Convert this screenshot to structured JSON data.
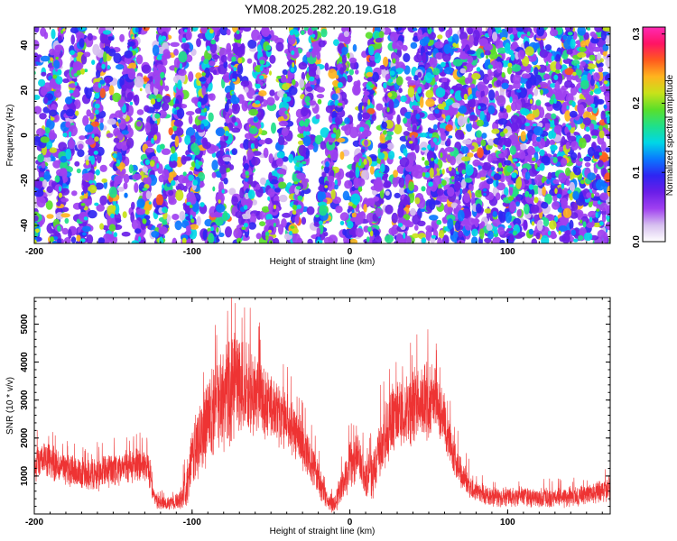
{
  "title": "YM08.2025.282.20.19.G18",
  "colors": {
    "snr_line": "#ee3333",
    "colormap": [
      "#ffffff",
      "#d7c0ef",
      "#a040f0",
      "#6a1ee8",
      "#2f25f2",
      "#0a78ff",
      "#00d7e6",
      "#1fe08a",
      "#5adf2a",
      "#c8e21a",
      "#ffb41e",
      "#ff5a1e",
      "#ff1464",
      "#ff2ab4"
    ]
  },
  "chart_data": [
    {
      "type": "heatmap",
      "title": "YM08.2025.282.20.19.G18",
      "xlabel": "Height of straight line (km)",
      "ylabel": "Frequency (Hz)",
      "xlim": [
        -200,
        165
      ],
      "ylim": [
        -48,
        48
      ],
      "xticks": [
        -200,
        -100,
        0,
        100
      ],
      "yticks": [
        -40,
        -20,
        0,
        20,
        40
      ],
      "colorbar": {
        "label": "Normalized spectral amplitude",
        "range": [
          0.0,
          0.31
        ],
        "ticks": [
          0.0,
          0.1,
          0.2,
          0.3
        ],
        "tick_labels": [
          "0.0",
          "0.1",
          "0.2",
          "0.3"
        ]
      },
      "ridge_pattern": {
        "description_values": "slanted ridge stripes across full frequency range",
        "ridge_slope_km_per_hz": 0.35,
        "ridge_spacing_km": [
          13,
          20
        ],
        "ridges_visible_range_km": [
          -200,
          30
        ]
      },
      "grid": false
    },
    {
      "type": "line",
      "xlabel": "Height of straight line (km)",
      "ylabel": "SNR (10 * v/v)",
      "xlim": [
        -200,
        165
      ],
      "ylim": [
        0,
        5700
      ],
      "xticks": [
        -200,
        -100,
        0,
        100
      ],
      "yticks": [
        1000,
        2000,
        3000,
        4000,
        5000
      ],
      "grid": false,
      "series": [
        {
          "color": "#ee3333",
          "envelope_x": [
            -200,
            -195,
            -190,
            -185,
            -175,
            -165,
            -155,
            -145,
            -135,
            -128,
            -125,
            -122,
            -115,
            -108,
            -103,
            -100,
            -95,
            -90,
            -85,
            -80,
            -75,
            -70,
            -65,
            -60,
            -55,
            -50,
            -45,
            -40,
            -35,
            -30,
            -25,
            -20,
            -15,
            -10,
            -5,
            0,
            5,
            10,
            15,
            20,
            25,
            30,
            35,
            40,
            45,
            50,
            55,
            60,
            65,
            70,
            75,
            80,
            85,
            90,
            100,
            110,
            120,
            130,
            140,
            150,
            160,
            165
          ],
          "envelope_mid": [
            1250,
            1500,
            1400,
            1250,
            1150,
            1000,
            1100,
            1200,
            1300,
            1250,
            500,
            300,
            280,
            350,
            800,
            1400,
            2000,
            2400,
            2800,
            3000,
            3300,
            3400,
            3300,
            3200,
            3000,
            2900,
            2700,
            2500,
            2200,
            1800,
            1400,
            900,
            400,
            250,
            700,
            1300,
            1500,
            900,
            1100,
            1900,
            2300,
            2700,
            2600,
            2800,
            2900,
            3000,
            3000,
            2400,
            1600,
            1100,
            800,
            600,
            500,
            450,
            450,
            450,
            400,
            400,
            450,
            500,
            600,
            700
          ],
          "envelope_amp": [
            550,
            550,
            500,
            500,
            500,
            450,
            500,
            500,
            500,
            500,
            300,
            200,
            200,
            250,
            700,
            900,
            1100,
            1200,
            1400,
            1500,
            1700,
            1500,
            1400,
            1300,
            1200,
            1100,
            1000,
            900,
            800,
            700,
            600,
            500,
            300,
            250,
            500,
            700,
            700,
            600,
            700,
            900,
            1000,
            1100,
            1000,
            1100,
            1100,
            1100,
            1000,
            800,
            600,
            500,
            400,
            300,
            300,
            300,
            300,
            300,
            300,
            300,
            300,
            300,
            350,
            400
          ]
        }
      ]
    }
  ]
}
